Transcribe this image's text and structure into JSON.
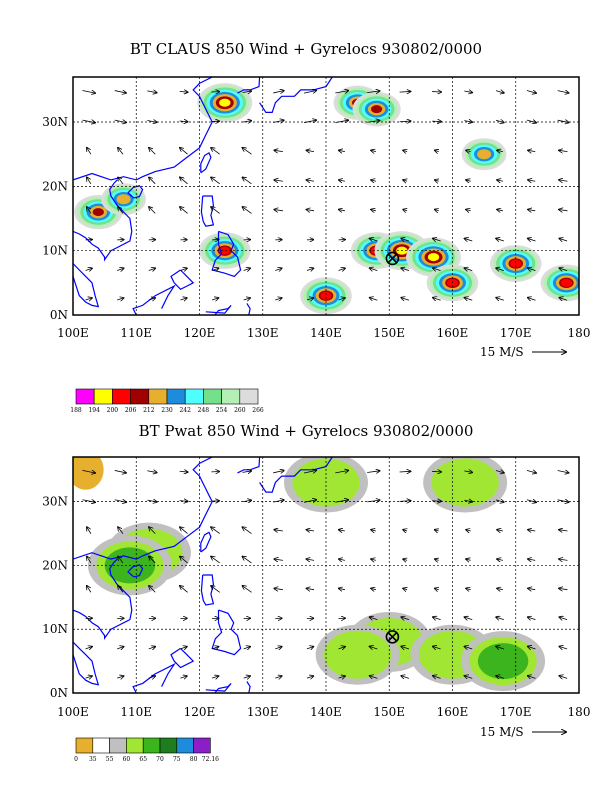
{
  "chart_data": [
    {
      "type": "heatmap",
      "title": "BT CLAUS 850 Wind + Gyrelocs 930802/0000",
      "x_ticks": [
        "100E",
        "110E",
        "120E",
        "130E",
        "140E",
        "150E",
        "160E",
        "170E",
        "180"
      ],
      "y_ticks": [
        "0N",
        "10N",
        "20N",
        "30N"
      ],
      "xlim": [
        100,
        180
      ],
      "ylim": [
        0,
        37
      ],
      "wind_scale_label": "15 M/S",
      "legend": {
        "labels": [
          "188",
          "194",
          "200",
          "206",
          "212",
          "230",
          "242",
          "248",
          "254",
          "260",
          "266"
        ],
        "colors": [
          "#ff00ff",
          "#ffff00",
          "#ff0000",
          "#a00000",
          "#e6af2d",
          "#1e8cdc",
          "#4fffff",
          "#74e08c",
          "#b4f0b4",
          "#dcdcdc"
        ]
      },
      "gyre_center": {
        "lon": 150.5,
        "lat": 8.8
      },
      "fields": [
        {
          "lon": 124,
          "lat": 33,
          "level": 3
        },
        {
          "lon": 124,
          "lat": 33,
          "level": 2
        },
        {
          "lon": 145,
          "lat": 33,
          "level": 4
        },
        {
          "lon": 148,
          "lat": 32,
          "level": 4
        },
        {
          "lon": 165,
          "lat": 25,
          "level": 5
        },
        {
          "lon": 104,
          "lat": 16,
          "level": 4
        },
        {
          "lon": 108,
          "lat": 18,
          "level": 5
        },
        {
          "lon": 124,
          "lat": 10,
          "level": 3
        },
        {
          "lon": 148,
          "lat": 10,
          "level": 3
        },
        {
          "lon": 152,
          "lat": 10,
          "level": 2
        },
        {
          "lon": 157,
          "lat": 9,
          "level": 2
        },
        {
          "lon": 160,
          "lat": 5,
          "level": 3
        },
        {
          "lon": 170,
          "lat": 8,
          "level": 3
        },
        {
          "lon": 178,
          "lat": 5,
          "level": 3
        },
        {
          "lon": 140,
          "lat": 3,
          "level": 3
        }
      ]
    },
    {
      "type": "heatmap",
      "title": "BT Pwat 850 Wind + Gyrelocs 930802/0000",
      "x_ticks": [
        "100E",
        "110E",
        "120E",
        "130E",
        "140E",
        "150E",
        "160E",
        "170E",
        "180"
      ],
      "y_ticks": [
        "0N",
        "10N",
        "20N",
        "30N"
      ],
      "xlim": [
        100,
        180
      ],
      "ylim": [
        0,
        37
      ],
      "wind_scale_label": "15 M/S",
      "legend": {
        "labels": [
          "0",
          "35",
          "55",
          "60",
          "65",
          "70",
          "75",
          "80",
          "72.16"
        ],
        "colors": [
          "#e6af2d",
          "#ffffff",
          "#c0c0c0",
          "#a0e632",
          "#3cb41e",
          "#1e7d1e",
          "#1e8cdc",
          "#8c1ec8"
        ]
      },
      "gyre_center": {
        "lon": 150.5,
        "lat": 8.8
      },
      "fields": [
        {
          "lon": 102,
          "lat": 35,
          "level": 0
        },
        {
          "lon": 140,
          "lat": 33,
          "level": 3
        },
        {
          "lon": 162,
          "lat": 33,
          "level": 3
        },
        {
          "lon": 112,
          "lat": 22,
          "level": 3
        },
        {
          "lon": 109,
          "lat": 20,
          "level": 4
        },
        {
          "lon": 150,
          "lat": 8,
          "level": 3
        },
        {
          "lon": 145,
          "lat": 6,
          "level": 3
        },
        {
          "lon": 160,
          "lat": 6,
          "level": 3
        },
        {
          "lon": 168,
          "lat": 5,
          "level": 4
        }
      ]
    }
  ]
}
